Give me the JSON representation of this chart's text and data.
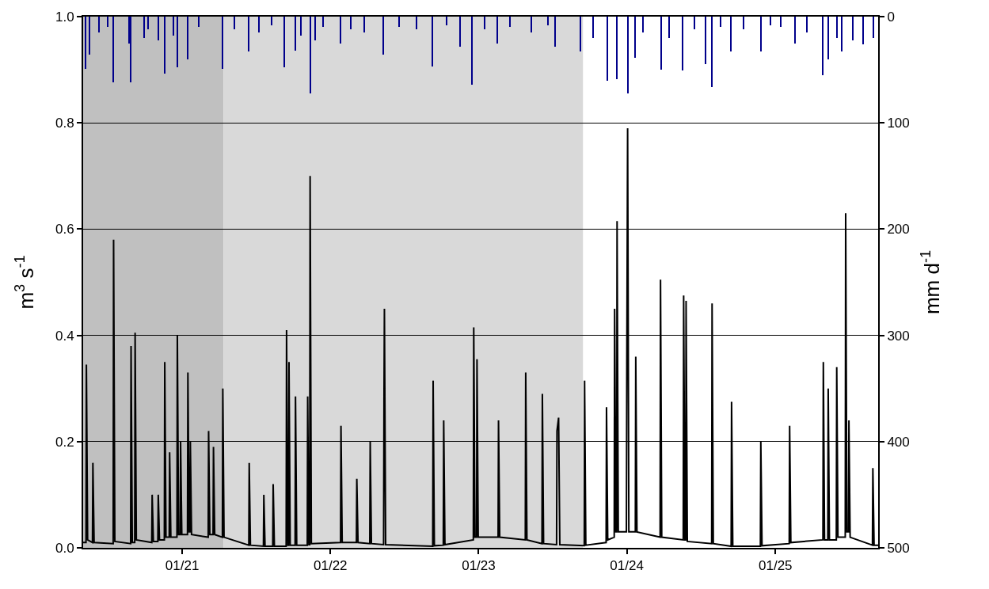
{
  "chart_data": {
    "type": "line",
    "ylabel": "m$^{3}$ s$^{-1}$",
    "y2label": "mm d$^{-1}$",
    "xlim": [
      "2020-05-02",
      "2025-09-11"
    ],
    "xticks": [
      {
        "value": "2021-01-01",
        "label": "01/21"
      },
      {
        "value": "2022-01-01",
        "label": "01/22"
      },
      {
        "value": "2023-01-01",
        "label": "01/23"
      },
      {
        "value": "2024-01-01",
        "label": "01/24"
      },
      {
        "value": "2025-01-01",
        "label": "01/25"
      }
    ],
    "ylim": [
      0,
      1.0
    ],
    "yticks": [
      {
        "value": 0,
        "label": "0.0"
      },
      {
        "value": 0.2,
        "label": "0.2"
      },
      {
        "value": 0.4,
        "label": "0.4"
      },
      {
        "value": 0.6,
        "label": "0.6"
      },
      {
        "value": 0.8,
        "label": "0.8"
      },
      {
        "value": 1.0,
        "label": "1.0"
      }
    ],
    "y2lim": [
      500,
      0
    ],
    "y2ticks": [
      0,
      100,
      200,
      300,
      400,
      500
    ],
    "grid": "y",
    "bands": [
      {
        "axis": "x",
        "from": "2020-05-02",
        "to": "2021-04-13",
        "color": "#c0c0c0"
      },
      {
        "axis": "x",
        "from": "2021-04-13",
        "to": "2023-09-15",
        "color": "#d9d9d9"
      }
    ],
    "series": [
      {
        "type": "bar",
        "axis": "y2",
        "color": "#00008b",
        "x": [
          "2020-05-08",
          "2020-05-18",
          "2020-06-10",
          "2020-07-01",
          "2020-07-16",
          "2020-08-24",
          "2020-08-28",
          "2020-09-30",
          "2020-10-10",
          "2020-11-03",
          "2020-11-19",
          "2020-12-10",
          "2020-12-20",
          "2021-01-15",
          "2021-02-10",
          "2021-04-11",
          "2021-05-10",
          "2021-06-13",
          "2021-07-10",
          "2021-08-10",
          "2021-09-09",
          "2021-10-07",
          "2021-10-20",
          "2021-11-12",
          "2021-11-24",
          "2021-12-15",
          "2022-01-25",
          "2022-02-20",
          "2022-03-25",
          "2022-05-11",
          "2022-06-20",
          "2022-08-01",
          "2022-09-09",
          "2022-10-15",
          "2022-11-16",
          "2022-12-16",
          "2023-01-15",
          "2023-02-17",
          "2023-03-20",
          "2023-05-10",
          "2023-06-20",
          "2023-07-09",
          "2023-09-08",
          "2023-10-10",
          "2023-11-14",
          "2023-12-08",
          "2024-01-03",
          "2024-01-21",
          "2024-02-10",
          "2024-03-26",
          "2024-04-15",
          "2024-05-18",
          "2024-06-15",
          "2024-07-12",
          "2024-07-29",
          "2024-08-20",
          "2024-09-13",
          "2024-10-15",
          "2024-11-26",
          "2024-12-20",
          "2025-01-15",
          "2025-02-19",
          "2025-03-20",
          "2025-04-27",
          "2025-05-11",
          "2025-06-01",
          "2025-06-13",
          "2025-07-10",
          "2025-08-05",
          "2025-08-31"
        ],
        "values": [
          49,
          36,
          15,
          10,
          62,
          25,
          62,
          20,
          12,
          22,
          54,
          18,
          48,
          40,
          10,
          49,
          12,
          33,
          15,
          8,
          48,
          32,
          18,
          72,
          22,
          10,
          25,
          12,
          15,
          36,
          10,
          12,
          47,
          8,
          28,
          64,
          12,
          25,
          10,
          15,
          8,
          28,
          33,
          20,
          60,
          59,
          72,
          39,
          15,
          50,
          20,
          51,
          12,
          45,
          66,
          10,
          33,
          12,
          33,
          8,
          10,
          25,
          15,
          55,
          40,
          20,
          33,
          22,
          26,
          20
        ]
      },
      {
        "color": "#000000",
        "x": [
          "2020-05-02",
          "2020-05-09",
          "2020-05-10",
          "2020-05-13",
          "2020-05-25",
          "2020-05-26",
          "2020-05-29",
          "2020-07-15",
          "2020-07-16",
          "2020-07-19",
          "2020-08-27",
          "2020-08-28",
          "2020-08-31",
          "2020-09-06",
          "2020-09-07",
          "2020-09-10",
          "2020-10-18",
          "2020-10-19",
          "2020-10-22",
          "2020-11-02",
          "2020-11-03",
          "2020-11-06",
          "2020-11-18",
          "2020-11-19",
          "2020-11-22",
          "2020-11-30",
          "2020-12-01",
          "2020-12-04",
          "2020-12-19",
          "2020-12-20",
          "2020-12-23",
          "2020-12-27",
          "2020-12-28",
          "2020-12-31",
          "2021-01-14",
          "2021-01-15",
          "2021-01-18",
          "2021-01-20",
          "2021-01-21",
          "2021-01-24",
          "2021-03-06",
          "2021-03-07",
          "2021-03-10",
          "2021-03-18",
          "2021-03-19",
          "2021-03-22",
          "2021-04-10",
          "2021-04-11",
          "2021-04-14",
          "2021-06-14",
          "2021-06-15",
          "2021-06-18",
          "2021-07-20",
          "2021-07-21",
          "2021-07-24",
          "2021-08-12",
          "2021-08-13",
          "2021-08-16",
          "2021-09-14",
          "2021-09-15",
          "2021-09-18",
          "2021-09-20",
          "2021-09-21",
          "2021-09-24",
          "2021-10-06",
          "2021-10-07",
          "2021-10-10",
          "2021-11-05",
          "2021-11-06",
          "2021-11-09",
          "2021-11-11",
          "2021-11-12",
          "2021-11-15",
          "2022-01-26",
          "2022-01-27",
          "2022-01-30",
          "2022-03-06",
          "2022-03-07",
          "2022-03-10",
          "2022-04-08",
          "2022-04-09",
          "2022-04-12",
          "2022-05-12",
          "2022-05-13",
          "2022-05-14",
          "2022-05-17",
          "2022-09-10",
          "2022-09-11",
          "2022-09-14",
          "2022-10-06",
          "2022-10-07",
          "2022-10-10",
          "2022-12-19",
          "2022-12-20",
          "2022-12-23",
          "2022-12-27",
          "2022-12-28",
          "2022-12-31",
          "2023-02-18",
          "2023-02-19",
          "2023-02-22",
          "2023-04-26",
          "2023-04-27",
          "2023-04-30",
          "2023-06-06",
          "2023-06-07",
          "2023-06-10",
          "2023-07-12",
          "2023-07-13",
          "2023-07-17",
          "2023-07-20",
          "2023-09-18",
          "2023-09-19",
          "2023-09-22",
          "2023-11-11",
          "2023-11-12",
          "2023-11-15",
          "2023-12-01",
          "2023-12-02",
          "2023-12-05",
          "2023-12-07",
          "2023-12-08",
          "2023-12-11",
          "2023-12-31",
          "2024-01-01",
          "2024-01-03",
          "2024-01-06",
          "2024-01-22",
          "2024-01-23",
          "2024-01-26",
          "2024-03-23",
          "2024-03-24",
          "2024-03-27",
          "2024-05-19",
          "2024-05-20",
          "2024-05-23",
          "2024-05-25",
          "2024-05-26",
          "2024-05-29",
          "2024-07-28",
          "2024-07-29",
          "2024-08-01",
          "2024-09-14",
          "2024-09-15",
          "2024-09-18",
          "2024-11-25",
          "2024-11-26",
          "2024-11-29",
          "2025-02-04",
          "2025-02-05",
          "2025-02-08",
          "2025-04-28",
          "2025-04-29",
          "2025-05-02",
          "2025-05-10",
          "2025-05-11",
          "2025-05-14",
          "2025-05-31",
          "2025-06-01",
          "2025-06-04",
          "2025-06-22",
          "2025-06-23",
          "2025-06-26",
          "2025-06-30",
          "2025-07-01",
          "2025-07-04",
          "2025-08-28",
          "2025-08-29",
          "2025-09-01",
          "2025-09-11"
        ],
        "values": [
          0.01,
          0.01,
          0.345,
          0.015,
          0.01,
          0.16,
          0.01,
          0.008,
          0.58,
          0.012,
          0.008,
          0.38,
          0.01,
          0.01,
          0.405,
          0.015,
          0.01,
          0.1,
          0.012,
          0.012,
          0.1,
          0.015,
          0.015,
          0.35,
          0.02,
          0.02,
          0.18,
          0.02,
          0.02,
          0.4,
          0.025,
          0.025,
          0.2,
          0.025,
          0.025,
          0.33,
          0.03,
          0.03,
          0.2,
          0.025,
          0.02,
          0.22,
          0.025,
          0.025,
          0.19,
          0.025,
          0.02,
          0.3,
          0.02,
          0.005,
          0.16,
          0.005,
          0.003,
          0.1,
          0.003,
          0.003,
          0.12,
          0.003,
          0.003,
          0.41,
          0.005,
          0.005,
          0.35,
          0.005,
          0.005,
          0.285,
          0.005,
          0.005,
          0.285,
          0.006,
          0.006,
          0.7,
          0.008,
          0.01,
          0.23,
          0.01,
          0.01,
          0.13,
          0.01,
          0.008,
          0.2,
          0.008,
          0.006,
          0.28,
          0.45,
          0.006,
          0.003,
          0.315,
          0.004,
          0.005,
          0.24,
          0.006,
          0.015,
          0.415,
          0.02,
          0.02,
          0.355,
          0.02,
          0.02,
          0.24,
          0.02,
          0.015,
          0.33,
          0.015,
          0.008,
          0.29,
          0.008,
          0.006,
          0.22,
          0.245,
          0.006,
          0.004,
          0.315,
          0.005,
          0.01,
          0.265,
          0.015,
          0.02,
          0.45,
          0.03,
          0.03,
          0.615,
          0.03,
          0.03,
          0.345,
          0.79,
          0.03,
          0.03,
          0.36,
          0.03,
          0.02,
          0.505,
          0.02,
          0.015,
          0.475,
          0.015,
          0.015,
          0.465,
          0.012,
          0.008,
          0.46,
          0.008,
          0.003,
          0.275,
          0.003,
          0.003,
          0.2,
          0.004,
          0.008,
          0.23,
          0.01,
          0.015,
          0.35,
          0.015,
          0.015,
          0.3,
          0.015,
          0.015,
          0.34,
          0.02,
          0.02,
          0.63,
          0.03,
          0.03,
          0.24,
          0.02,
          0.005,
          0.15,
          0.005,
          0.005
        ]
      }
    ]
  }
}
